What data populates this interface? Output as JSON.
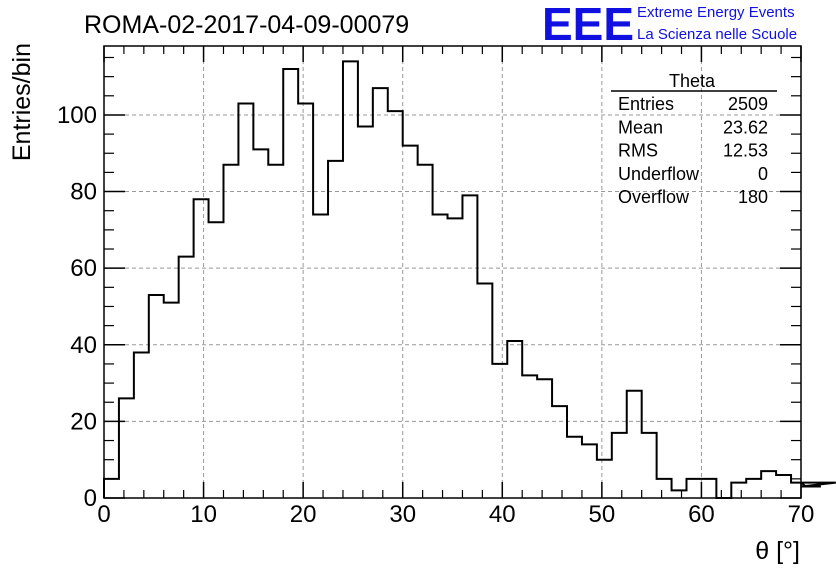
{
  "header": {
    "run_title": "ROMA-02-2017-04-09-00079",
    "logo_text": "EEE",
    "logo_line1": "Extreme Energy Events",
    "logo_line2": "La Scienza nelle Scuole",
    "logo_color": "#1010e0"
  },
  "stats": {
    "title": "Theta",
    "rows": [
      {
        "label": "Entries",
        "value": "2509"
      },
      {
        "label": "Mean",
        "value": "23.62"
      },
      {
        "label": "RMS",
        "value": "12.53"
      },
      {
        "label": "Underflow",
        "value": "0"
      },
      {
        "label": "Overflow",
        "value": "180"
      }
    ]
  },
  "chart_data": {
    "type": "bar",
    "style": "step-histogram",
    "xlabel": "θ [°]",
    "ylabel": "Entries/bin",
    "xlim": [
      0,
      70
    ],
    "ylim": [
      0,
      118
    ],
    "bin_width": 1.5,
    "x_ticks": [
      "0",
      "10",
      "20",
      "30",
      "40",
      "50",
      "60",
      "70"
    ],
    "y_ticks": [
      "0",
      "20",
      "40",
      "60",
      "80",
      "100"
    ],
    "grid": true,
    "values": [
      5,
      26,
      38,
      53,
      51,
      63,
      78,
      72,
      87,
      103,
      91,
      87,
      112,
      103,
      74,
      88,
      114,
      97,
      107,
      101,
      92,
      87,
      74,
      73,
      79,
      56,
      35,
      41,
      32,
      31,
      24,
      16,
      14,
      10,
      17,
      28,
      17,
      5,
      2,
      5,
      5,
      0,
      4,
      5,
      7,
      6,
      4,
      3,
      3,
      4
    ]
  }
}
